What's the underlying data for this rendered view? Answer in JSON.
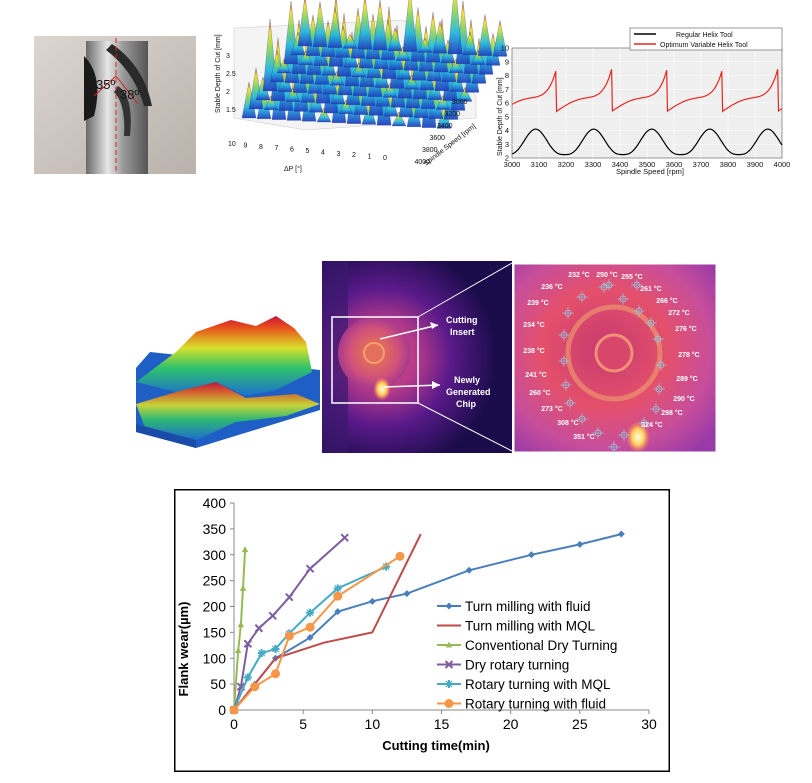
{
  "figures": {
    "tool_photo": {
      "angle_left": "35º",
      "angle_right": "38º"
    },
    "stability_3d": {
      "z_label": "Stable Depth of Cut [mm]",
      "x_label": "ΔP [°]",
      "y_label": "Spindle Speed [rpm]",
      "x_ticks": [
        "10",
        "9",
        "8",
        "7",
        "6",
        "5",
        "4",
        "3",
        "2",
        "1",
        "0"
      ],
      "y_ticks": [
        "3000",
        "3200",
        "3400",
        "3600",
        "3800",
        "4000"
      ],
      "z_ticks": [
        "3",
        "2.5",
        "2",
        "1.5"
      ]
    },
    "helix_compare": {
      "legend": [
        "Regular Helix Tool",
        "Optimum Variable Helix Tool"
      ],
      "colors": [
        "#000000",
        "#e8261d"
      ],
      "y_label": "Stable Depth of Cut [mm]",
      "x_label": "Spindle Speed [rpm]",
      "x_ticks": [
        "3000",
        "3100",
        "3200",
        "3300",
        "3400",
        "3500",
        "3600",
        "3700",
        "3800",
        "3900",
        "4000"
      ],
      "y_ticks": [
        "10",
        "9",
        "8",
        "7",
        "6",
        "5",
        "4",
        "3",
        "2"
      ]
    },
    "thermal": {
      "label_insert": "Cutting\nInsert",
      "label_chip": "Newly\nGenerated\nChip",
      "temperatures": [
        "232 °C",
        "250 °C",
        "255 °C",
        "236 °C",
        "261 °C",
        "239 °C",
        "266 °C",
        "272 °C",
        "234 °C",
        "276 °C",
        "238 °C",
        "278 °C",
        "241 °C",
        "289 °C",
        "260 °C",
        "290 °C",
        "273 °C",
        "298 °C",
        "308 °C",
        "324 °C",
        "351 °C"
      ]
    }
  },
  "chart_data": {
    "type": "line",
    "title": "",
    "xlabel": "Cutting time(min)",
    "ylabel": "Flank wear(µm)",
    "xlim": [
      0,
      30
    ],
    "ylim": [
      0,
      400
    ],
    "x_ticks": [
      0,
      5,
      10,
      15,
      20,
      25,
      30
    ],
    "y_ticks": [
      0,
      50,
      100,
      150,
      200,
      250,
      300,
      350,
      400
    ],
    "grid": false,
    "legend_position": "right",
    "series": [
      {
        "name": "Turn milling with fluid",
        "color": "#4a7ebb",
        "marker": "diamond",
        "x": [
          0,
          1.5,
          3,
          5.5,
          7.5,
          10,
          12.5,
          17,
          21.5,
          25,
          28
        ],
        "y": [
          0,
          50,
          100,
          140,
          190,
          210,
          225,
          270,
          300,
          320,
          340
        ]
      },
      {
        "name": "Turn milling with MQL",
        "color": "#be4b48",
        "marker": "none",
        "x": [
          0,
          1.5,
          3,
          6.5,
          10,
          13.5
        ],
        "y": [
          0,
          50,
          100,
          130,
          150,
          340
        ]
      },
      {
        "name": "Conventional Dry Turning",
        "color": "#98b954",
        "marker": "triangle",
        "x": [
          0,
          0.3,
          0.5,
          0.65,
          0.8
        ],
        "y": [
          0,
          115,
          165,
          235,
          310
        ]
      },
      {
        "name": "Dry rotary turning",
        "color": "#7d5fa0",
        "marker": "x",
        "x": [
          0,
          0.5,
          1,
          1.8,
          2.8,
          4,
          5.5,
          8
        ],
        "y": [
          0,
          45,
          128,
          158,
          182,
          218,
          273,
          333
        ]
      },
      {
        "name": "Rotary turning with MQL",
        "color": "#46aac5",
        "marker": "star",
        "x": [
          0,
          1,
          2,
          3,
          4,
          5.5,
          7.5,
          11
        ],
        "y": [
          0,
          63,
          110,
          118,
          148,
          188,
          235,
          277
        ]
      },
      {
        "name": "Rotary turning with fluid",
        "color": "#f79646",
        "marker": "circle",
        "x": [
          0,
          1.5,
          3,
          4,
          5.5,
          7.5,
          12
        ],
        "y": [
          0,
          45,
          70,
          143,
          160,
          220,
          297
        ]
      }
    ]
  }
}
